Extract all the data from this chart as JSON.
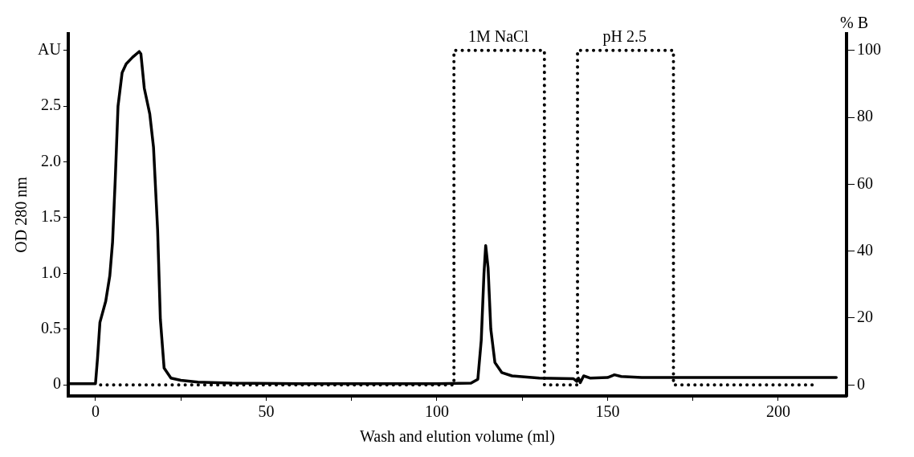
{
  "chart_data": {
    "type": "line",
    "xlabel": "Wash and elution volume (ml)",
    "ylabel": "OD 280 nm",
    "y2label": "% B",
    "xlim": [
      -8,
      220
    ],
    "xticks": [
      0,
      {
        "value": 25,
        "label": null
      },
      50,
      {
        "value": 75,
        "label": null
      },
      100,
      {
        "value": 125,
        "label": null
      },
      150,
      {
        "value": 175,
        "label": null
      },
      200
    ],
    "ylim": [
      -0.1,
      3.15
    ],
    "yticks": [
      0,
      0.5,
      {
        "value": 1,
        "label": "1.0"
      },
      1.5,
      {
        "value": 2,
        "label": "2.0"
      },
      2.5,
      {
        "value": 3,
        "label": "AU"
      }
    ],
    "y2lim": [
      -3.3,
      105
    ],
    "y2ticks": [
      0,
      20,
      40,
      60,
      80,
      100
    ],
    "grid": false,
    "series": [
      {
        "type": "line",
        "color": "#000000",
        "line_style": "solid",
        "x": [
          -8,
          0,
          0.6,
          1.3,
          3.0,
          4.2,
          5.0,
          5.8,
          6.6,
          7.8,
          9.0,
          10.9,
          12.8,
          13.3,
          14.3,
          15.9,
          17.0,
          18.2,
          19.0,
          20.1,
          22.1,
          25,
          30,
          40,
          60,
          100,
          110,
          112,
          113,
          113.8,
          114.3,
          115,
          115.8,
          117,
          119,
          122,
          130,
          140,
          141,
          141.5,
          142,
          143,
          145,
          150,
          152,
          154,
          160,
          217
        ],
        "values": [
          0.01,
          0.01,
          0.24,
          0.56,
          0.75,
          0.98,
          1.28,
          1.85,
          2.5,
          2.8,
          2.88,
          2.94,
          2.99,
          2.97,
          2.66,
          2.43,
          2.13,
          1.39,
          0.59,
          0.15,
          0.06,
          0.04,
          0.025,
          0.015,
          0.01,
          0.01,
          0.015,
          0.05,
          0.4,
          1.0,
          1.25,
          1.05,
          0.5,
          0.2,
          0.11,
          0.08,
          0.06,
          0.055,
          0.03,
          0.06,
          0.02,
          0.08,
          0.06,
          0.065,
          0.09,
          0.075,
          0.065,
          0.065
        ]
      },
      {
        "type": "line",
        "color": "#000000",
        "line_style": "dotted",
        "axis": "y2",
        "x": [
          1.5,
          105,
          105,
          131.5,
          131.5,
          141.2,
          141.2,
          169.3,
          169.3,
          210
        ],
        "values": [
          0,
          0,
          100,
          100,
          0,
          0,
          100,
          100,
          0,
          0
        ]
      }
    ],
    "annotations": [
      {
        "text": "1M NaCl",
        "x": 118,
        "y": 3.0
      },
      {
        "text": "pH 2.5",
        "x": 155,
        "y": 3.0
      }
    ]
  }
}
